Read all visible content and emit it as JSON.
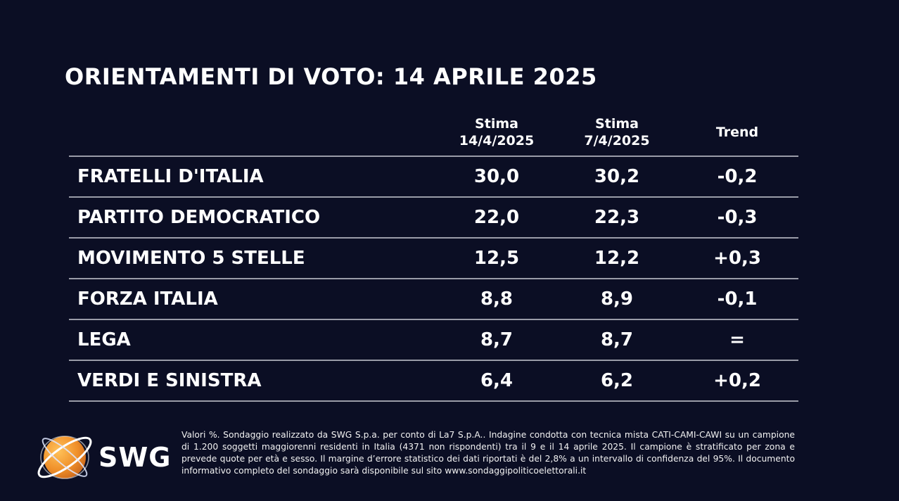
{
  "title": "ORIENTAMENTI DI VOTO: 14 APRILE 2025",
  "columns": {
    "col1_line1": "Stima",
    "col1_line2": "14/4/2025",
    "col2_line1": "Stima",
    "col2_line2": "7/4/2025",
    "col3": "Trend"
  },
  "rows": [
    {
      "party": "FRATELLI D'ITALIA",
      "current": "30,0",
      "previous": "30,2",
      "trend": "-0,2"
    },
    {
      "party": "PARTITO DEMOCRATICO",
      "current": "22,0",
      "previous": "22,3",
      "trend": "-0,3"
    },
    {
      "party": "MOVIMENTO 5 STELLE",
      "current": "12,5",
      "previous": "12,2",
      "trend": "+0,3"
    },
    {
      "party": "FORZA ITALIA",
      "current": "8,8",
      "previous": "8,9",
      "trend": "-0,1"
    },
    {
      "party": "LEGA",
      "current": "8,7",
      "previous": "8,7",
      "trend": "="
    },
    {
      "party": "VERDI E SINISTRA",
      "current": "6,4",
      "previous": "6,2",
      "trend": "+0,2"
    }
  ],
  "logo": {
    "text": "SWG",
    "icon": "swg-globe-icon",
    "orange": "#f0902a",
    "ring": "#ffffff"
  },
  "footnote": "Valori %. Sondaggio realizzato da SWG S.p.a. per conto di La7 S.p.A.. Indagine condotta con tecnica mista CATI-CAMI-CAWI su un campione di 1.200 soggetti maggiorenni residenti in Italia (4371 non rispondenti) tra il 9 e il 14 aprile 2025. Il campione è stratificato per zona e prevede quote per età e sesso. Il margine d’errore statistico dei dati riportati è del 2,8% a un intervallo di confidenza del 95%. Il documento informativo completo del sondaggio sarà disponibile sul sito www.sondaggipoliticoelettorali.it"
}
